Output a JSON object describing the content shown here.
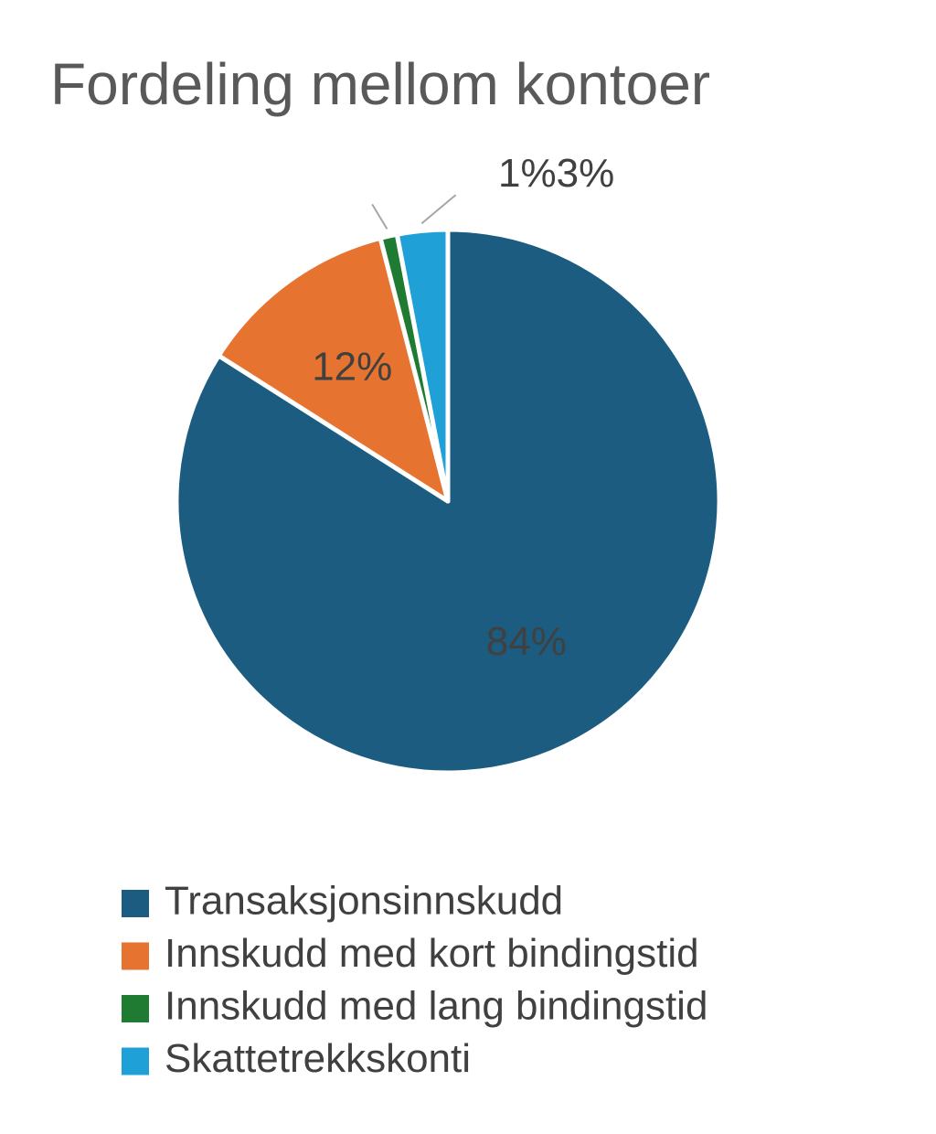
{
  "chart_data": {
    "type": "pie",
    "title": "Fordeling mellom kontoer",
    "categories": [
      "Transaksjonsinnskudd",
      "Innskudd med kort bindingstid",
      "Innskudd med lang bindingstid",
      "Skattetrekkskonti"
    ],
    "values": [
      84,
      12,
      1,
      3
    ],
    "value_labels": [
      "84%",
      "12%",
      "1%",
      "3%"
    ],
    "colors": [
      "#1b5c80",
      "#e67330",
      "#1f7a32",
      "#1fa0d6"
    ],
    "legend": "bottom"
  }
}
